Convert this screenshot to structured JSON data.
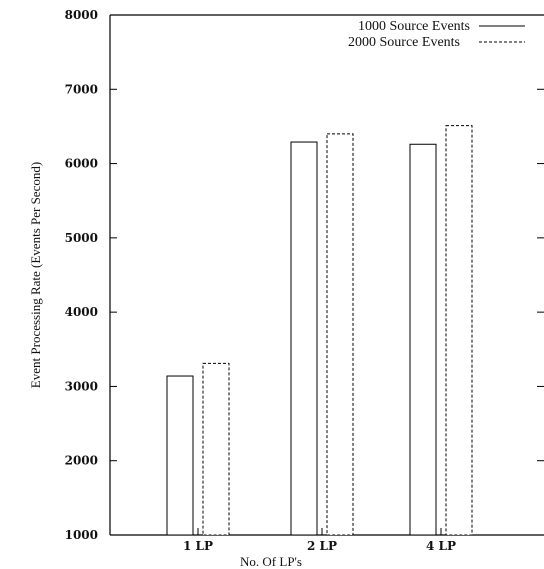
{
  "chart_data": {
    "type": "bar",
    "categories": [
      "1 LP",
      "2 LP",
      "4 LP"
    ],
    "series": [
      {
        "name": "1000 Source Events",
        "values": [
          3140,
          6290,
          6260
        ],
        "line_style": "solid"
      },
      {
        "name": "2000 Source Events",
        "values": [
          3310,
          6400,
          6510
        ],
        "line_style": "dashed"
      }
    ],
    "xlabel": "No. Of LP's",
    "ylabel": "Event Processing Rate (Events Per Second)",
    "ylim": [
      1000,
      8000
    ],
    "yticks": [
      1000,
      2000,
      3000,
      4000,
      5000,
      6000,
      7000,
      8000
    ],
    "grid": false,
    "legend_position": "top-right",
    "colors": {
      "bar_fill": "#ffffff",
      "stroke": "#000000"
    }
  }
}
